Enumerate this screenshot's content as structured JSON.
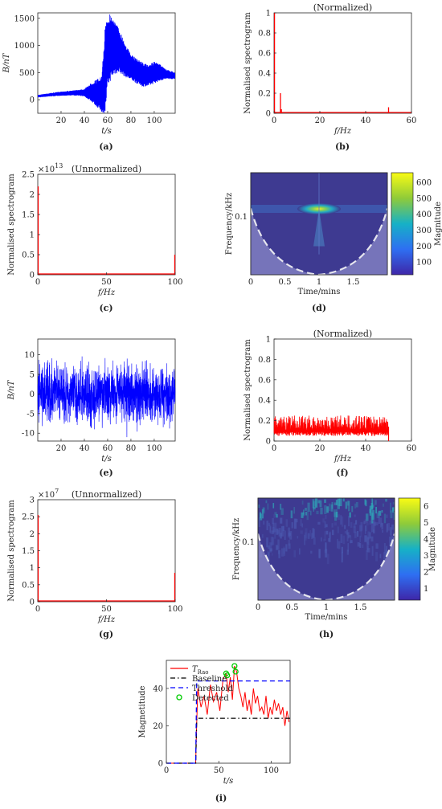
{
  "figure": {
    "panel_labels": [
      "(a)",
      "(b)",
      "(c)",
      "(d)",
      "(e)",
      "(f)",
      "(g)",
      "(h)",
      "(i)"
    ]
  },
  "colors": {
    "blue_signal": "#0000ff",
    "red_spectrum": "#ff0000",
    "baseline": "#000000",
    "threshold": "#0000ff",
    "detected": "#00cc00",
    "cwt_background": "#3e3a91",
    "cone_shade": "#8a88c8",
    "cone_line": "#e6e6ee"
  },
  "chart_data": [
    {
      "panel": "(a)",
      "type": "line",
      "title": "",
      "xlabel": "t/s",
      "ylabel": "B/nT",
      "xlim": [
        0,
        118
      ],
      "ylim": [
        -250,
        1600
      ],
      "xticks": [
        20,
        40,
        60,
        80,
        100
      ],
      "yticks": [
        0,
        500,
        1000,
        1500
      ],
      "series": [
        {
          "color": "#0000ff",
          "envelope_x": [
            0,
            10,
            20,
            30,
            40,
            47,
            55,
            58,
            60,
            62,
            65,
            70,
            75,
            80,
            85,
            90,
            95,
            100,
            105,
            110,
            118
          ],
          "upper": [
            90,
            120,
            150,
            170,
            200,
            330,
            430,
            1400,
            1560,
            1580,
            1500,
            1300,
            1050,
            830,
            760,
            690,
            640,
            700,
            650,
            560,
            500
          ],
          "lower": [
            40,
            60,
            70,
            80,
            60,
            -50,
            -230,
            -250,
            250,
            330,
            450,
            500,
            420,
            360,
            300,
            240,
            250,
            300,
            350,
            380,
            380
          ]
        }
      ]
    },
    {
      "panel": "(b)",
      "type": "bar",
      "title": "(Normalized)",
      "xlabel": "f/Hz",
      "ylabel": "Normalised spectrogram",
      "xlim": [
        0,
        60
      ],
      "ylim": [
        0,
        1
      ],
      "xticks": [
        0,
        20,
        40,
        60
      ],
      "yticks": [
        0,
        0.2,
        0.4,
        0.6,
        0.8,
        1
      ],
      "x": [
        0.2,
        2.8,
        3.2,
        50
      ],
      "values": [
        1.0,
        0.2,
        0.04,
        0.06
      ]
    },
    {
      "panel": "(c)",
      "type": "bar",
      "title": "(Unnormalized)",
      "xlabel": "f/Hz",
      "ylabel": "Normalised spectrogram",
      "y_exponent_base": "×10",
      "y_exponent_power": "13",
      "xlim": [
        0,
        100
      ],
      "ylim": [
        0,
        2.5
      ],
      "xticks": [
        0,
        50,
        100
      ],
      "yticks": [
        0,
        0.5,
        1,
        1.5,
        2,
        2.5
      ],
      "x": [
        0.3,
        99.7
      ],
      "values": [
        2.2,
        0.5
      ]
    },
    {
      "panel": "(d)",
      "type": "heatmap",
      "title": "",
      "xlabel": "Time/mins",
      "ylabel": "Frequency/kHz",
      "colorbar_label": "Magnitude",
      "xlim": [
        0,
        2
      ],
      "xticks": [
        0,
        0.5,
        1,
        1.5
      ],
      "ytick_labels": [
        "0.1"
      ],
      "colorbar_ticks": [
        100,
        200,
        300,
        400,
        500,
        600
      ],
      "peak": {
        "time": 1.0,
        "magnitude": 640
      }
    },
    {
      "panel": "(e)",
      "type": "line",
      "title": "",
      "xlabel": "t/s",
      "ylabel": "B/nT",
      "xlim": [
        0,
        118
      ],
      "ylim": [
        -12,
        14
      ],
      "xticks": [
        20,
        40,
        60,
        80,
        100
      ],
      "yticks": [
        -10,
        -5,
        0,
        5,
        10
      ],
      "series": [
        {
          "color": "#0000ff",
          "description_range": [
            -11,
            13
          ]
        }
      ]
    },
    {
      "panel": "(f)",
      "type": "bar",
      "title": "(Normalized)",
      "xlabel": "f/Hz",
      "ylabel": "Normalised spectrogram",
      "xlim": [
        0,
        60
      ],
      "ylim": [
        0,
        1
      ],
      "xticks": [
        0,
        20,
        40,
        60
      ],
      "yticks": [
        0,
        0.2,
        0.4,
        0.6,
        0.8,
        1
      ],
      "noise_band": {
        "from": 0,
        "to": 50,
        "low": 0.05,
        "high": 0.25
      }
    },
    {
      "panel": "(g)",
      "type": "bar",
      "title": "(Unnormalized)",
      "xlabel": "f/Hz",
      "ylabel": "Normalised spectrogram",
      "y_exponent_base": "×10",
      "y_exponent_power": "7",
      "xlim": [
        0,
        100
      ],
      "ylim": [
        0,
        3
      ],
      "xticks": [
        0,
        50,
        100
      ],
      "yticks": [
        0,
        0.5,
        1,
        1.5,
        2,
        2.5,
        3
      ],
      "x": [
        0.3,
        99.7
      ],
      "values": [
        2.55,
        0.85
      ]
    },
    {
      "panel": "(h)",
      "type": "heatmap",
      "title": "",
      "xlabel": "Time/mins",
      "ylabel": "Frequency/kHz",
      "colorbar_label": "Magnitude",
      "xlim": [
        0,
        2
      ],
      "xticks": [
        0,
        0.5,
        1,
        1.5
      ],
      "ytick_labels": [
        "0.1"
      ],
      "colorbar_ticks": [
        1,
        2,
        3,
        4,
        5,
        6
      ]
    },
    {
      "panel": "(i)",
      "type": "line",
      "title": "",
      "xlabel": "t/s",
      "ylabel": "Magnetitude",
      "xlim": [
        0,
        118
      ],
      "ylim": [
        0,
        55
      ],
      "xticks": [
        0,
        50,
        100
      ],
      "yticks": [
        0,
        20,
        40
      ],
      "legend": [
        "T_Rao",
        "Baseline",
        "Threshold",
        "Detected"
      ],
      "legend_position": "top-left",
      "series": [
        {
          "name": "T_Rao",
          "color": "#ff0000",
          "x": [
            0,
            28,
            29,
            30,
            33,
            36,
            39,
            42,
            45,
            48,
            51,
            54,
            57,
            59,
            61,
            63,
            65,
            67,
            69,
            71,
            73,
            75,
            77,
            79,
            81,
            83,
            85,
            87,
            89,
            91,
            93,
            95,
            97,
            99,
            101,
            103,
            105,
            107,
            109,
            111,
            113,
            115,
            117
          ],
          "y": [
            0,
            0,
            22,
            40,
            30,
            36,
            26,
            42,
            33,
            38,
            28,
            45,
            48,
            38,
            46,
            34,
            52,
            49,
            40,
            36,
            30,
            38,
            28,
            34,
            26,
            40,
            32,
            36,
            28,
            30,
            26,
            36,
            24,
            30,
            26,
            34,
            28,
            32,
            26,
            30,
            20,
            28,
            22
          ]
        },
        {
          "name": "Baseline",
          "color": "#000000",
          "dash": "dashdot",
          "x": [
            0,
            28,
            29,
            118
          ],
          "y": [
            0,
            0,
            24,
            24
          ]
        },
        {
          "name": "Threshold",
          "color": "#0000ff",
          "dash": "dashed",
          "x": [
            0,
            28,
            29,
            118
          ],
          "y": [
            0,
            0,
            44,
            44
          ]
        },
        {
          "name": "Detected",
          "color": "#00cc00",
          "marker": "circle",
          "x": [
            57,
            58,
            65,
            66
          ],
          "y": [
            48,
            47,
            52,
            49
          ]
        }
      ]
    }
  ]
}
